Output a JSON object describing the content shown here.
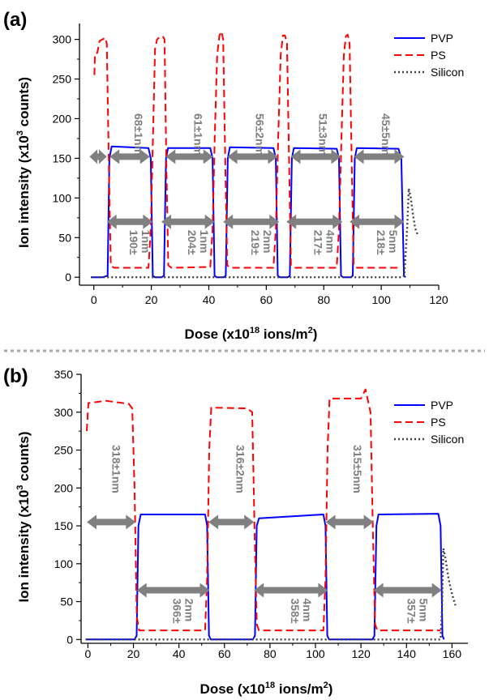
{
  "chart_data": [
    {
      "panel": "(a)",
      "type": "line",
      "xlabel": "Dose (x10",
      "xlabel_sup": "18",
      "xlabel_tail": " ions/m",
      "xlabel_sup2": "2",
      "xlabel_end": ")",
      "ylabel": "Ion intensity (x10",
      "ylabel_sup": "3",
      "ylabel_tail": " counts)",
      "xlim": [
        -5,
        120
      ],
      "ylim": [
        -10,
        320
      ],
      "xticks": [
        0,
        20,
        40,
        60,
        80,
        100,
        120
      ],
      "yticks": [
        0,
        50,
        100,
        150,
        200,
        250,
        300
      ],
      "legend_position": "top-right",
      "series": [
        {
          "name": "PVP",
          "color": "#0000ff",
          "style": "solid",
          "points": [
            [
              -1,
              0
            ],
            [
              3,
              0
            ],
            [
              4.8,
              2
            ],
            [
              5.4,
              150
            ],
            [
              6.2,
              165
            ],
            [
              19,
              163
            ],
            [
              19.8,
              150
            ],
            [
              20.5,
              2
            ],
            [
              21.2,
              0
            ],
            [
              23.6,
              0
            ],
            [
              24.4,
              2
            ],
            [
              25.1,
              150
            ],
            [
              25.8,
              163
            ],
            [
              40.5,
              163
            ],
            [
              41.3,
              150
            ],
            [
              42,
              2
            ],
            [
              42.7,
              0
            ],
            [
              45.2,
              0
            ],
            [
              45.9,
              2
            ],
            [
              46.6,
              150
            ],
            [
              47.3,
              164
            ],
            [
              62.5,
              163
            ],
            [
              63.3,
              150
            ],
            [
              64,
              2
            ],
            [
              64.7,
              0
            ],
            [
              67.5,
              0
            ],
            [
              68.2,
              2
            ],
            [
              68.9,
              150
            ],
            [
              69.6,
              163
            ],
            [
              84.5,
              162
            ],
            [
              85.3,
              150
            ],
            [
              86,
              2
            ],
            [
              86.7,
              0
            ],
            [
              89.4,
              0
            ],
            [
              90.1,
              2
            ],
            [
              90.8,
              150
            ],
            [
              91.5,
              163
            ],
            [
              106,
              162
            ],
            [
              107,
              150
            ],
            [
              107.9,
              2
            ],
            [
              108.5,
              0
            ]
          ]
        },
        {
          "name": "PS",
          "color": "#ff0000",
          "style": "dashed",
          "points": [
            [
              0.2,
              255
            ],
            [
              0.4,
              282
            ],
            [
              1.2,
              283
            ],
            [
              2,
              298
            ],
            [
              3,
              300
            ],
            [
              4,
              302
            ],
            [
              4.5,
              295
            ],
            [
              5.2,
              150
            ],
            [
              5.9,
              15
            ],
            [
              7,
              12
            ],
            [
              19,
              12
            ],
            [
              19.8,
              60
            ],
            [
              20.6,
              180
            ],
            [
              21.3,
              288
            ],
            [
              22,
              300
            ],
            [
              23,
              303
            ],
            [
              24,
              304
            ],
            [
              24.6,
              300
            ],
            [
              25.2,
              150
            ],
            [
              25.9,
              15
            ],
            [
              27,
              12
            ],
            [
              40.5,
              13
            ],
            [
              41.3,
              60
            ],
            [
              42.1,
              180
            ],
            [
              42.9,
              280
            ],
            [
              43.7,
              305
            ],
            [
              44.4,
              310
            ],
            [
              45,
              300
            ],
            [
              45.7,
              150
            ],
            [
              46.4,
              15
            ],
            [
              47.5,
              12
            ],
            [
              62.5,
              12
            ],
            [
              63.3,
              60
            ],
            [
              64.2,
              180
            ],
            [
              65,
              280
            ],
            [
              65.8,
              305
            ],
            [
              66.5,
              305
            ],
            [
              67.2,
              295
            ],
            [
              67.9,
              150
            ],
            [
              68.6,
              15
            ],
            [
              69.8,
              12
            ],
            [
              84.5,
              12
            ],
            [
              85.3,
              60
            ],
            [
              86.2,
              180
            ],
            [
              87,
              280
            ],
            [
              87.7,
              304
            ],
            [
              88.3,
              306
            ],
            [
              89,
              295
            ],
            [
              89.7,
              150
            ],
            [
              90.4,
              15
            ],
            [
              91.6,
              12
            ],
            [
              106.5,
              12
            ]
          ]
        },
        {
          "name": "Silicon",
          "color": "#404040",
          "style": "dotted",
          "points": [
            [
              -1,
              0
            ],
            [
              107,
              0
            ],
            [
              108,
              2
            ],
            [
              109,
              60
            ],
            [
              109.6,
              112
            ],
            [
              110.3,
              100
            ],
            [
              111,
              80
            ],
            [
              111.8,
              62
            ],
            [
              112.8,
              52
            ]
          ]
        }
      ],
      "annotations": {
        "thickness_labels": [
          "68±1nm",
          "61±1nm",
          "56±2nm",
          "51±3nm",
          "45±5nm"
        ],
        "thickness_x": [
          12.8,
          33.5,
          55,
          77,
          98.8
        ],
        "thickness_y": 180,
        "arrow_y": 152,
        "pair_arrows": [
          [
            -1.5,
            4.5
          ],
          [
            5.5,
            19.5
          ],
          [
            25,
            41.5
          ],
          [
            46.5,
            64
          ],
          [
            68.5,
            86
          ],
          [
            90.5,
            108
          ]
        ],
        "width_labels": [
          [
            "190±",
            "1nm"
          ],
          [
            "204±",
            "1nm"
          ],
          [
            "219±",
            "2nm"
          ],
          [
            "217±",
            "4nm"
          ],
          [
            "218±",
            "5nm"
          ]
        ],
        "width_arrows": [
          [
            4.5,
            20.5
          ],
          [
            23.5,
            42
          ],
          [
            45,
            64.5
          ],
          [
            67,
            86.5
          ],
          [
            89,
            108
          ]
        ],
        "width_arrow_y": 70
      }
    },
    {
      "panel": "(b)",
      "type": "line",
      "xlabel": "Dose (x10",
      "xlabel_sup": "18",
      "xlabel_tail": " ions/m",
      "xlabel_sup2": "2",
      "xlabel_end": ")",
      "ylabel": "Ion intensity (x10",
      "ylabel_sup": "3",
      "ylabel_tail": " counts)",
      "xlim": [
        -3,
        167
      ],
      "ylim": [
        -5,
        350
      ],
      "xticks": [
        0,
        20,
        40,
        60,
        80,
        100,
        120,
        140,
        160
      ],
      "yticks": [
        0,
        50,
        100,
        150,
        200,
        250,
        300,
        350
      ],
      "legend_position": "top-right",
      "series": [
        {
          "name": "PVP",
          "color": "#0000ff",
          "style": "solid",
          "points": [
            [
              -1,
              0
            ],
            [
              20.5,
              0
            ],
            [
              21.4,
              5
            ],
            [
              22.2,
              150
            ],
            [
              23.2,
              165
            ],
            [
              51.5,
              165
            ],
            [
              52.4,
              150
            ],
            [
              53.2,
              5
            ],
            [
              54,
              0
            ],
            [
              72.5,
              0
            ],
            [
              73.4,
              5
            ],
            [
              74.2,
              150
            ],
            [
              75.2,
              160
            ],
            [
              103.5,
              165
            ],
            [
              104.4,
              150
            ],
            [
              105.2,
              5
            ],
            [
              106,
              0
            ],
            [
              125,
              0
            ],
            [
              125.9,
              5
            ],
            [
              126.8,
              150
            ],
            [
              127.7,
              165
            ],
            [
              154,
              166
            ],
            [
              155,
              150
            ],
            [
              155.8,
              5
            ],
            [
              156.5,
              0
            ]
          ]
        },
        {
          "name": "PS",
          "color": "#ff0000",
          "style": "dashed",
          "points": [
            [
              -0.5,
              275
            ],
            [
              0.2,
              312
            ],
            [
              8,
              315
            ],
            [
              18,
              311
            ],
            [
              19.5,
              305
            ],
            [
              20.5,
              200
            ],
            [
              21.5,
              30
            ],
            [
              22.5,
              12
            ],
            [
              51.5,
              12
            ],
            [
              52.4,
              80
            ],
            [
              53.3,
              250
            ],
            [
              54.2,
              306
            ],
            [
              70,
              305
            ],
            [
              72.2,
              300
            ],
            [
              73.2,
              150
            ],
            [
              74.2,
              20
            ],
            [
              75.2,
              12
            ],
            [
              103.5,
              12
            ],
            [
              104.4,
              80
            ],
            [
              105.3,
              250
            ],
            [
              106.2,
              318
            ],
            [
              120,
              318
            ],
            [
              122,
              330
            ],
            [
              124.2,
              300
            ],
            [
              125.2,
              150
            ],
            [
              126.2,
              20
            ],
            [
              127.2,
              12
            ],
            [
              155,
              12
            ]
          ]
        },
        {
          "name": "Silicon",
          "color": "#404040",
          "style": "dotted",
          "points": [
            [
              -1,
              0
            ],
            [
              155,
              0
            ],
            [
              155.6,
              40
            ],
            [
              156.2,
              120
            ],
            [
              157,
              110
            ],
            [
              158.5,
              80
            ],
            [
              160,
              60
            ],
            [
              161.5,
              45
            ]
          ]
        }
      ],
      "annotations": {
        "thickness_labels": [
          "318±1nm",
          "316±2nm",
          "315±5nm"
        ],
        "thickness_x": [
          9,
          63.5,
          115
        ],
        "thickness_y": 225,
        "arrow_y": 155,
        "pair_arrows": [
          [
            -0.5,
            21
          ],
          [
            53,
            73
          ],
          [
            104.5,
            125.5
          ]
        ],
        "width_labels": [
          [
            "366±",
            "2nm"
          ],
          [
            "358±",
            "4nm"
          ],
          [
            "357±",
            "5nm"
          ]
        ],
        "width_arrows": [
          [
            21.5,
            53.5
          ],
          [
            73,
            105.5
          ],
          [
            125.5,
            155.5
          ]
        ],
        "width_arrow_y": 65
      }
    }
  ]
}
